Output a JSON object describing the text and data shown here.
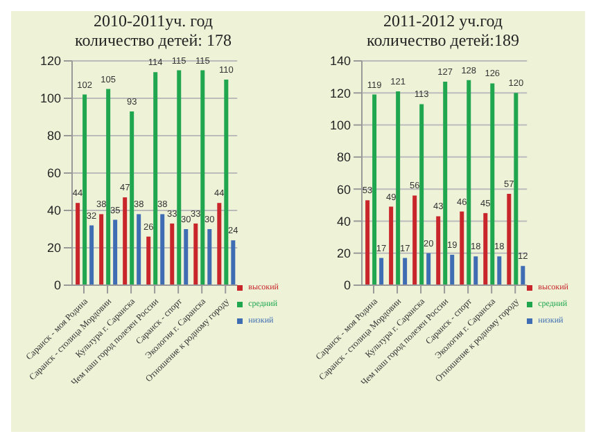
{
  "chart_data": [
    {
      "type": "bar",
      "title": "2010-2011уч. год",
      "subtitle": "количество детей: 178",
      "categories": [
        "Саранск - моя Родина",
        "Саранск - столица Мордовии",
        "Культура г. Саранска",
        "Чем наш город полезен России",
        "Саранск - спорт",
        "Экология г. Саранска",
        "Отношение к родному городу"
      ],
      "series": [
        {
          "name": "высокий",
          "color": "#c8262b",
          "values": [
            44,
            38,
            47,
            26,
            33,
            33,
            44
          ]
        },
        {
          "name": "средний",
          "color": "#1fa64e",
          "values": [
            102,
            105,
            93,
            114,
            115,
            115,
            110
          ]
        },
        {
          "name": "низкий",
          "color": "#3f6db3",
          "values": [
            32,
            35,
            38,
            38,
            30,
            30,
            24
          ]
        }
      ],
      "ylim": [
        0,
        120
      ],
      "yticks": [
        0,
        20,
        40,
        60,
        80,
        100,
        120
      ],
      "grid": "y",
      "legend": "right",
      "data_labels": true
    },
    {
      "type": "bar",
      "title": "2011-2012 уч.год",
      "subtitle": "количество детей:189",
      "categories": [
        "Саранск - моя Родина",
        "Саранск - столица Мордовии",
        "Культура г. Саранска",
        "Чем наш город полезен России",
        "Саранск - спорт",
        "Экология г. Саранска",
        "Отношение к родному городу"
      ],
      "series": [
        {
          "name": "высокий",
          "color": "#c8262b",
          "values": [
            53,
            49,
            56,
            43,
            46,
            45,
            57
          ]
        },
        {
          "name": "средний",
          "color": "#1fa64e",
          "values": [
            119,
            121,
            113,
            127,
            128,
            126,
            120
          ]
        },
        {
          "name": "низкий",
          "color": "#3f6db3",
          "values": [
            17,
            17,
            20,
            19,
            18,
            18,
            12
          ]
        }
      ],
      "ylim": [
        0,
        140
      ],
      "yticks": [
        0,
        20,
        40,
        60,
        80,
        100,
        120,
        140
      ],
      "grid": "y",
      "legend": "right",
      "data_labels": true
    }
  ]
}
